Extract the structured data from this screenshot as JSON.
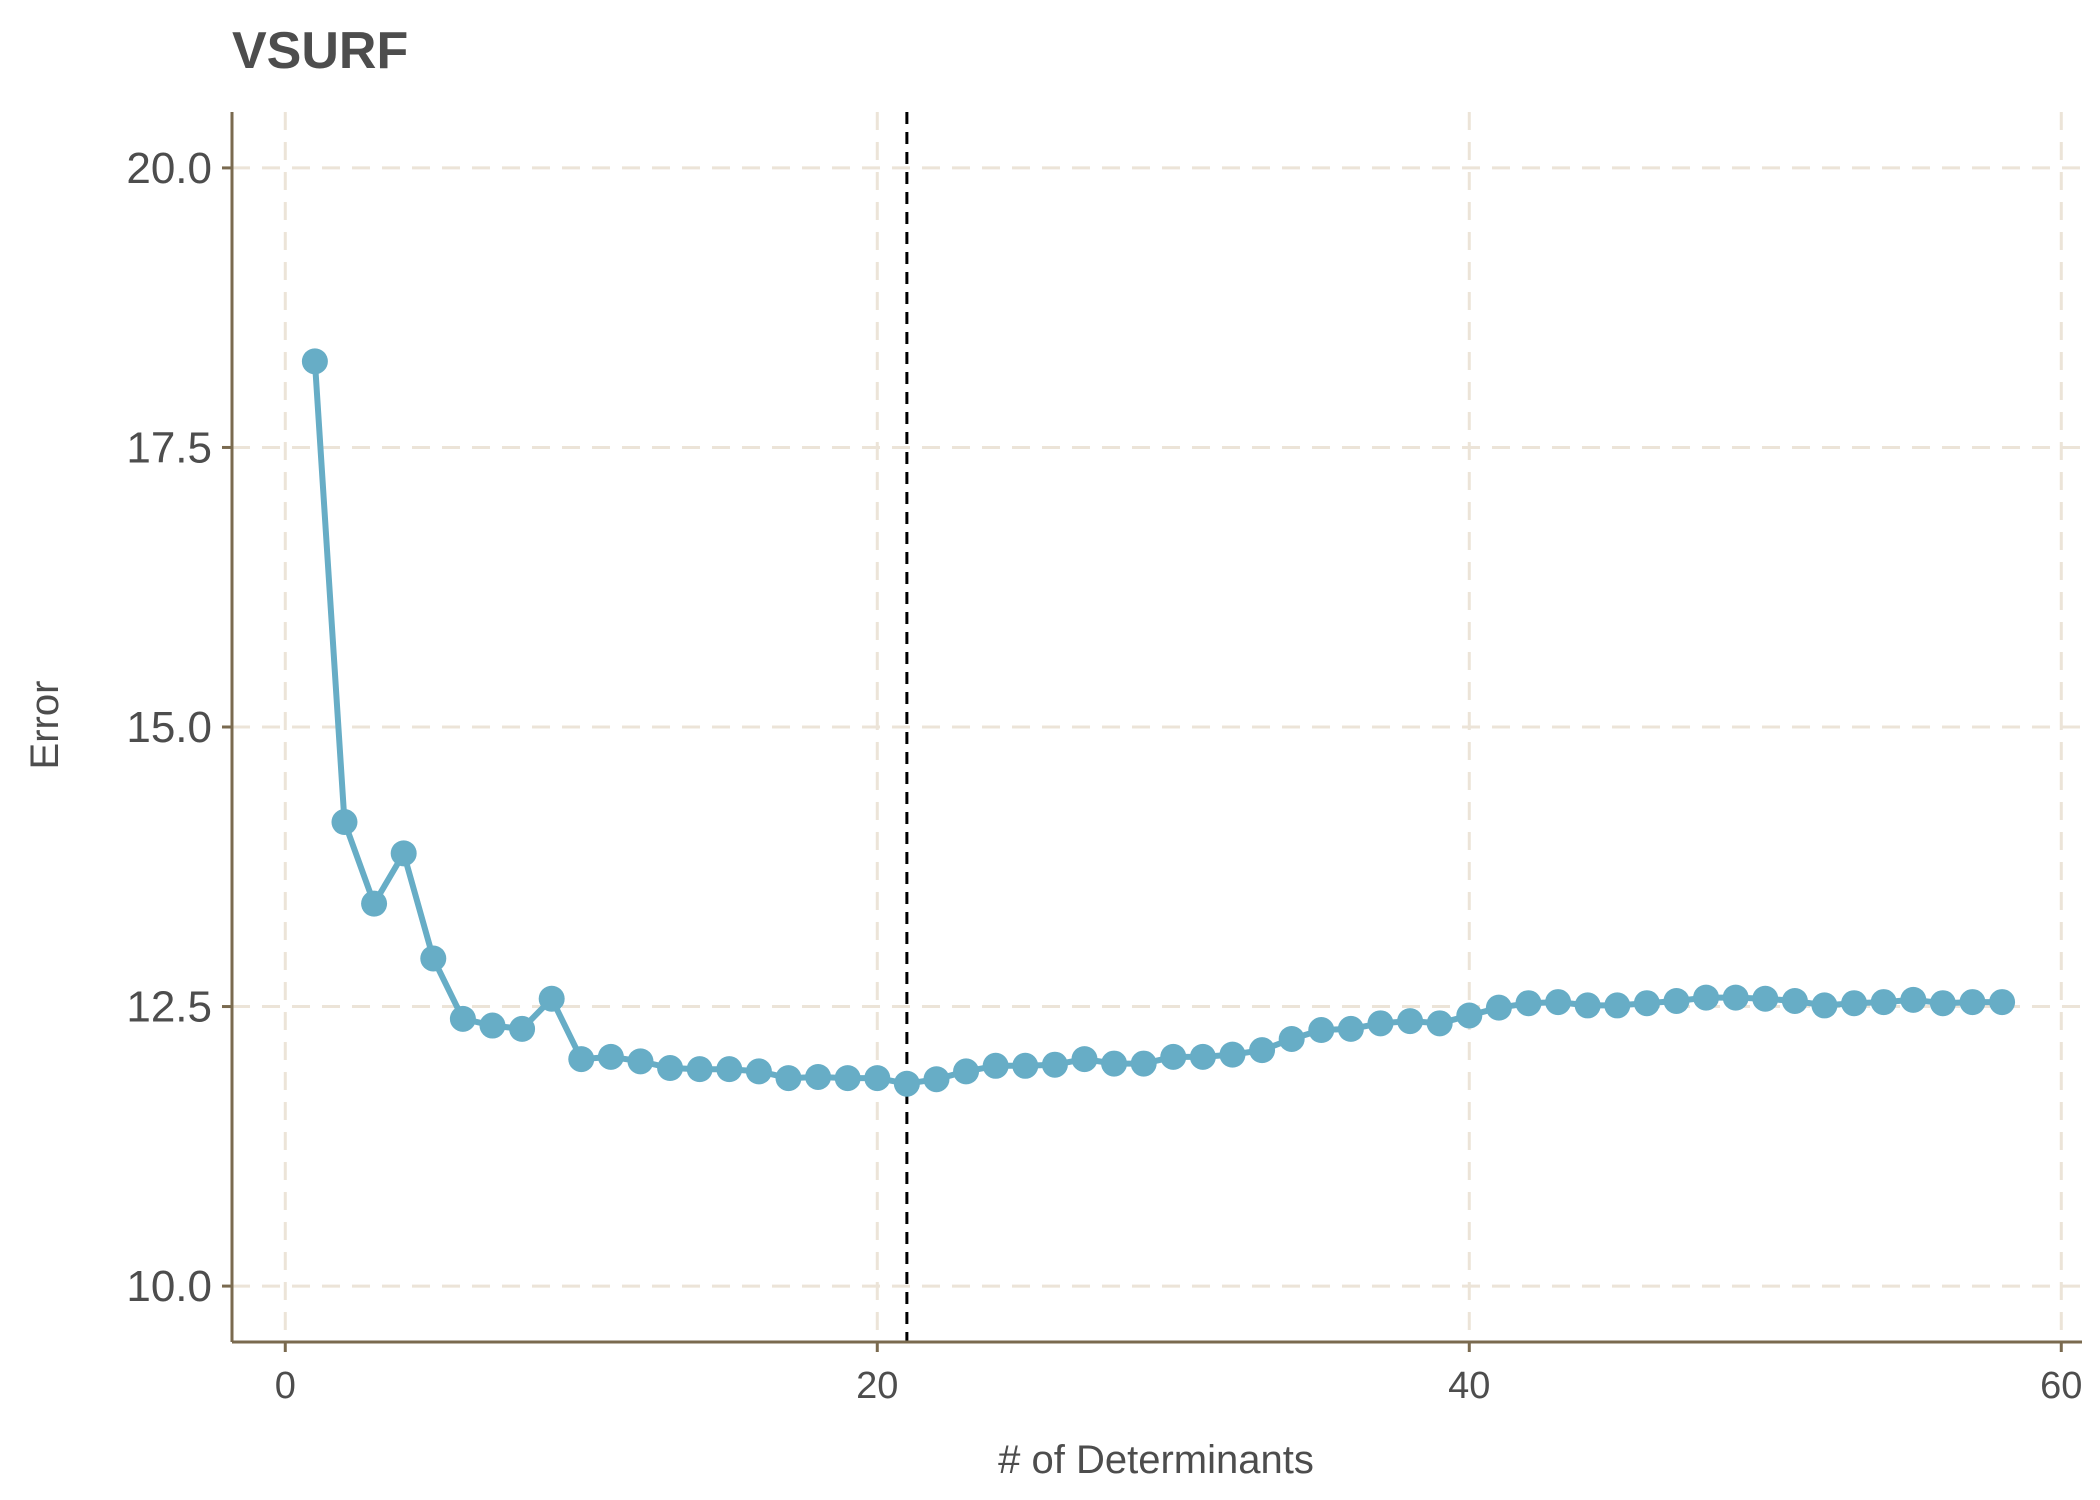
{
  "chart_data": {
    "type": "line",
    "title": "VSURF",
    "xlabel": "# of Determinants",
    "ylabel": "Error",
    "xlim": [
      -1.8,
      60.7
    ],
    "ylim": [
      9.5,
      20.5
    ],
    "xticks": [
      0,
      20,
      40,
      60
    ],
    "xtick_labels": [
      "0",
      "20",
      "40",
      "60"
    ],
    "yticks": [
      10.0,
      12.5,
      15.0,
      17.5,
      20.0
    ],
    "ytick_labels": [
      "10.0",
      "12.5",
      "15.0",
      "17.5",
      "20.0"
    ],
    "grid": true,
    "legend": "none",
    "reference_line": {
      "orientation": "vertical",
      "x": 21,
      "style": "dashed",
      "color": "#000000"
    },
    "series": [
      {
        "color": "#67adc6",
        "x": [
          1,
          2,
          3,
          4,
          5,
          6,
          7,
          8,
          9,
          10,
          11,
          12,
          13,
          14,
          15,
          16,
          17,
          18,
          19,
          20,
          21,
          22,
          23,
          24,
          25,
          26,
          27,
          28,
          29,
          30,
          31,
          32,
          33,
          34,
          35,
          36,
          37,
          38,
          39,
          40,
          41,
          42,
          43,
          44,
          45,
          46,
          47,
          48,
          49,
          50,
          51,
          52,
          53,
          54,
          55,
          56,
          57,
          58
        ],
        "y": [
          18.27,
          14.15,
          13.42,
          13.87,
          12.93,
          12.39,
          12.33,
          12.3,
          12.57,
          12.03,
          12.05,
          12.01,
          11.95,
          11.94,
          11.94,
          11.92,
          11.86,
          11.87,
          11.86,
          11.86,
          11.81,
          11.85,
          11.92,
          11.97,
          11.97,
          11.98,
          12.03,
          11.99,
          11.99,
          12.05,
          12.05,
          12.07,
          12.11,
          12.21,
          12.29,
          12.3,
          12.35,
          12.37,
          12.35,
          12.42,
          12.49,
          12.53,
          12.54,
          12.51,
          12.51,
          12.53,
          12.55,
          12.58,
          12.58,
          12.57,
          12.55,
          12.51,
          12.53,
          12.54,
          12.56,
          12.53,
          12.54,
          12.54
        ]
      }
    ]
  }
}
